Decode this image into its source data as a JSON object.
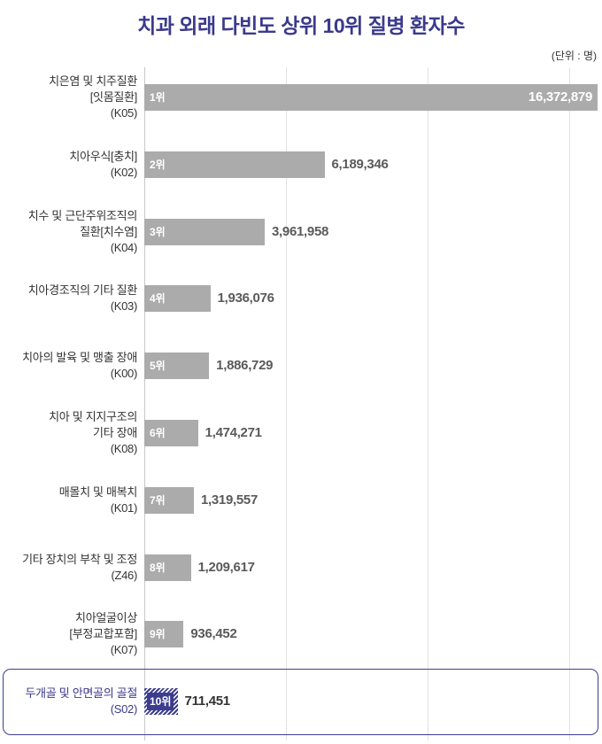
{
  "chart_data": {
    "type": "bar",
    "orientation": "horizontal",
    "title": "치과 외래 다빈도 상위 10위 질병 환자수",
    "unit": "(단위 : 명)",
    "grid": true,
    "categories": [
      "치은염 및 치주질환\n[잇몸질환]\n(K05)",
      "치아우식[충치]\n(K02)",
      "치수 및 근단주위조직의\n질환[치수염]\n(K04)",
      "치아경조직의 기타 질환\n(K03)",
      "치아의 발육 및 맹출 장애\n(K00)",
      "치아 및 지지구조의\n기타 장애\n(K08)",
      "매몰치 및 매복치\n(K01)",
      "기타 장치의 부착 및 조정\n(Z46)",
      "치아얼굴이상\n[부정교합포함]\n(K07)",
      "두개골 및 안면골의 골절\n(S02)"
    ],
    "ranks": [
      "1위",
      "2위",
      "3위",
      "4위",
      "5위",
      "6위",
      "7위",
      "8위",
      "9위",
      "10위"
    ],
    "values": [
      16372879,
      6189346,
      3961958,
      1936076,
      1886729,
      1474271,
      1319557,
      1209617,
      936452,
      711451
    ],
    "highlight_index": 9
  },
  "colors": {
    "title": "#3b3a8c",
    "bar": "#ababab",
    "highlight": "#3d3d8f",
    "highlight_label": "#3b3a8c",
    "value": "#5a5a5a",
    "value_highlight": "#333333",
    "label": "#333333",
    "grid": "#e2e2e2",
    "axis": "#c8c8c8"
  }
}
